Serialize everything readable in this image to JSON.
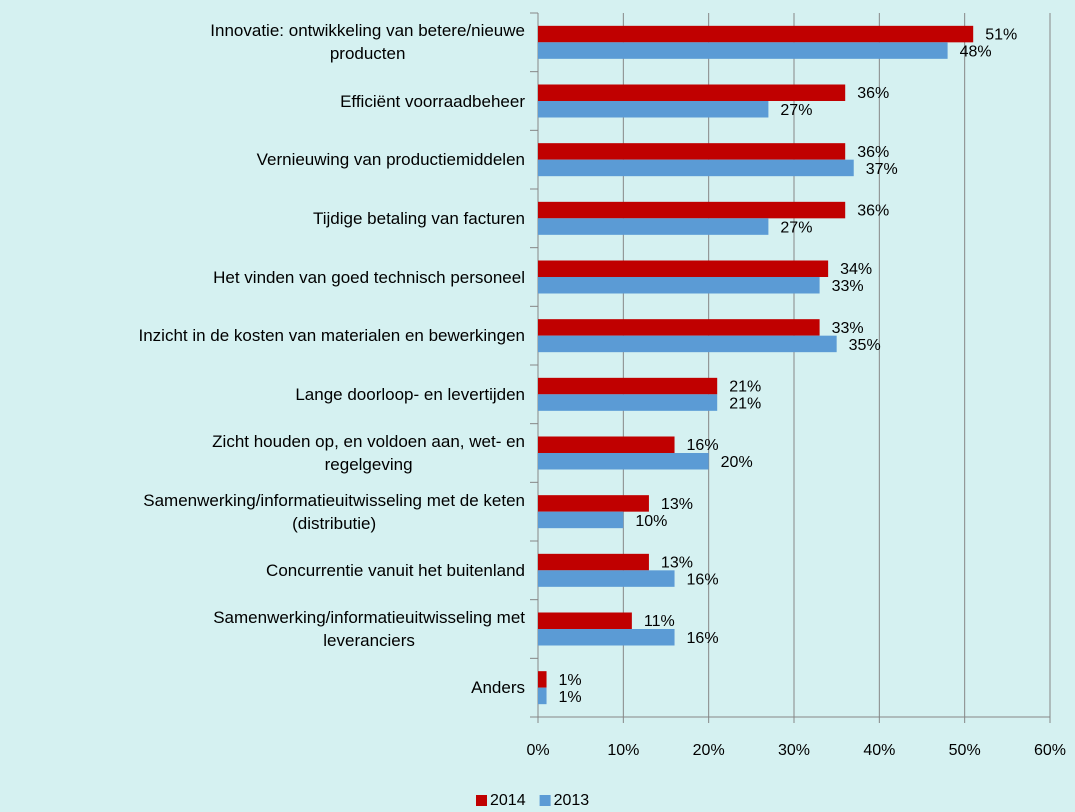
{
  "chart_data": {
    "type": "hbar",
    "categories": [
      "Innovatie: ontwikkeling van betere/nieuwe\nproducten",
      "Efficiënt voorraadbeheer",
      "Vernieuwing van productiemiddelen",
      "Tijdige betaling van facturen",
      "Het vinden van goed technisch personeel",
      "Inzicht in de kosten van materialen en bewerkingen",
      "Lange doorloop- en levertijden",
      "Zicht houden op, en voldoen aan, wet- en\nregelgeving",
      "Samenwerking/informatieuitwisseling met de keten\n(distributie)",
      "Concurrentie vanuit het buitenland",
      "Samenwerking/informatieuitwisseling met\nleveranciers",
      "Anders"
    ],
    "series": [
      {
        "name": "2014",
        "color": "#c00000",
        "values": [
          51,
          36,
          36,
          36,
          34,
          33,
          21,
          16,
          13,
          13,
          11,
          1
        ],
        "value_labels": [
          "51%",
          "36%",
          "36%",
          "36%",
          "34%",
          "33%",
          "21%",
          "16%",
          "13%",
          "13%",
          "11%",
          "1%"
        ]
      },
      {
        "name": "2013",
        "color": "#5b9bd5",
        "values": [
          48,
          27,
          37,
          27,
          33,
          35,
          21,
          20,
          10,
          16,
          16,
          1
        ],
        "value_labels": [
          "48%",
          "27%",
          "37%",
          "27%",
          "33%",
          "35%",
          "21%",
          "20%",
          "10%",
          "16%",
          "16%",
          "1%"
        ]
      }
    ],
    "xlim": [
      0,
      60
    ],
    "xticks": [
      {
        "value": 0,
        "label": "0%"
      },
      {
        "value": 10,
        "label": "10%"
      },
      {
        "value": 20,
        "label": "20%"
      },
      {
        "value": 30,
        "label": "30%"
      },
      {
        "value": 40,
        "label": "40%"
      },
      {
        "value": 50,
        "label": "50%"
      },
      {
        "value": 60,
        "label": "60%"
      }
    ],
    "grid": true,
    "legend": "bottom"
  }
}
